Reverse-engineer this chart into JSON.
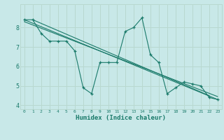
{
  "title": "",
  "xlabel": "Humidex (Indice chaleur)",
  "ylabel": "",
  "bg_color": "#c8e8e8",
  "grid_color": "#b8d8d0",
  "line_color": "#1a7a6a",
  "xlim": [
    -0.5,
    23.5
  ],
  "ylim": [
    3.8,
    9.2
  ],
  "yticks": [
    4,
    5,
    6,
    7,
    8
  ],
  "xticks": [
    0,
    1,
    2,
    3,
    4,
    5,
    6,
    7,
    8,
    9,
    10,
    11,
    12,
    13,
    14,
    15,
    16,
    17,
    18,
    19,
    20,
    21,
    22,
    23
  ],
  "series": [
    [
      0,
      8.4
    ],
    [
      1,
      8.4
    ],
    [
      2,
      7.7
    ],
    [
      3,
      7.3
    ],
    [
      4,
      7.3
    ],
    [
      5,
      7.3
    ],
    [
      6,
      6.8
    ],
    [
      7,
      4.9
    ],
    [
      8,
      4.6
    ],
    [
      9,
      6.2
    ],
    [
      10,
      6.2
    ],
    [
      11,
      6.2
    ],
    [
      12,
      7.8
    ],
    [
      13,
      8.0
    ],
    [
      14,
      8.5
    ],
    [
      15,
      6.6
    ],
    [
      16,
      6.2
    ],
    [
      17,
      4.6
    ],
    [
      18,
      4.9
    ],
    [
      19,
      5.2
    ],
    [
      20,
      5.1
    ],
    [
      21,
      5.0
    ],
    [
      22,
      4.4
    ],
    [
      23,
      4.3
    ]
  ],
  "line1": [
    [
      0,
      8.4
    ],
    [
      23,
      4.3
    ]
  ],
  "line2": [
    [
      0,
      8.3
    ],
    [
      23,
      4.45
    ]
  ],
  "line3": [
    [
      1,
      8.4
    ],
    [
      22,
      4.5
    ]
  ]
}
